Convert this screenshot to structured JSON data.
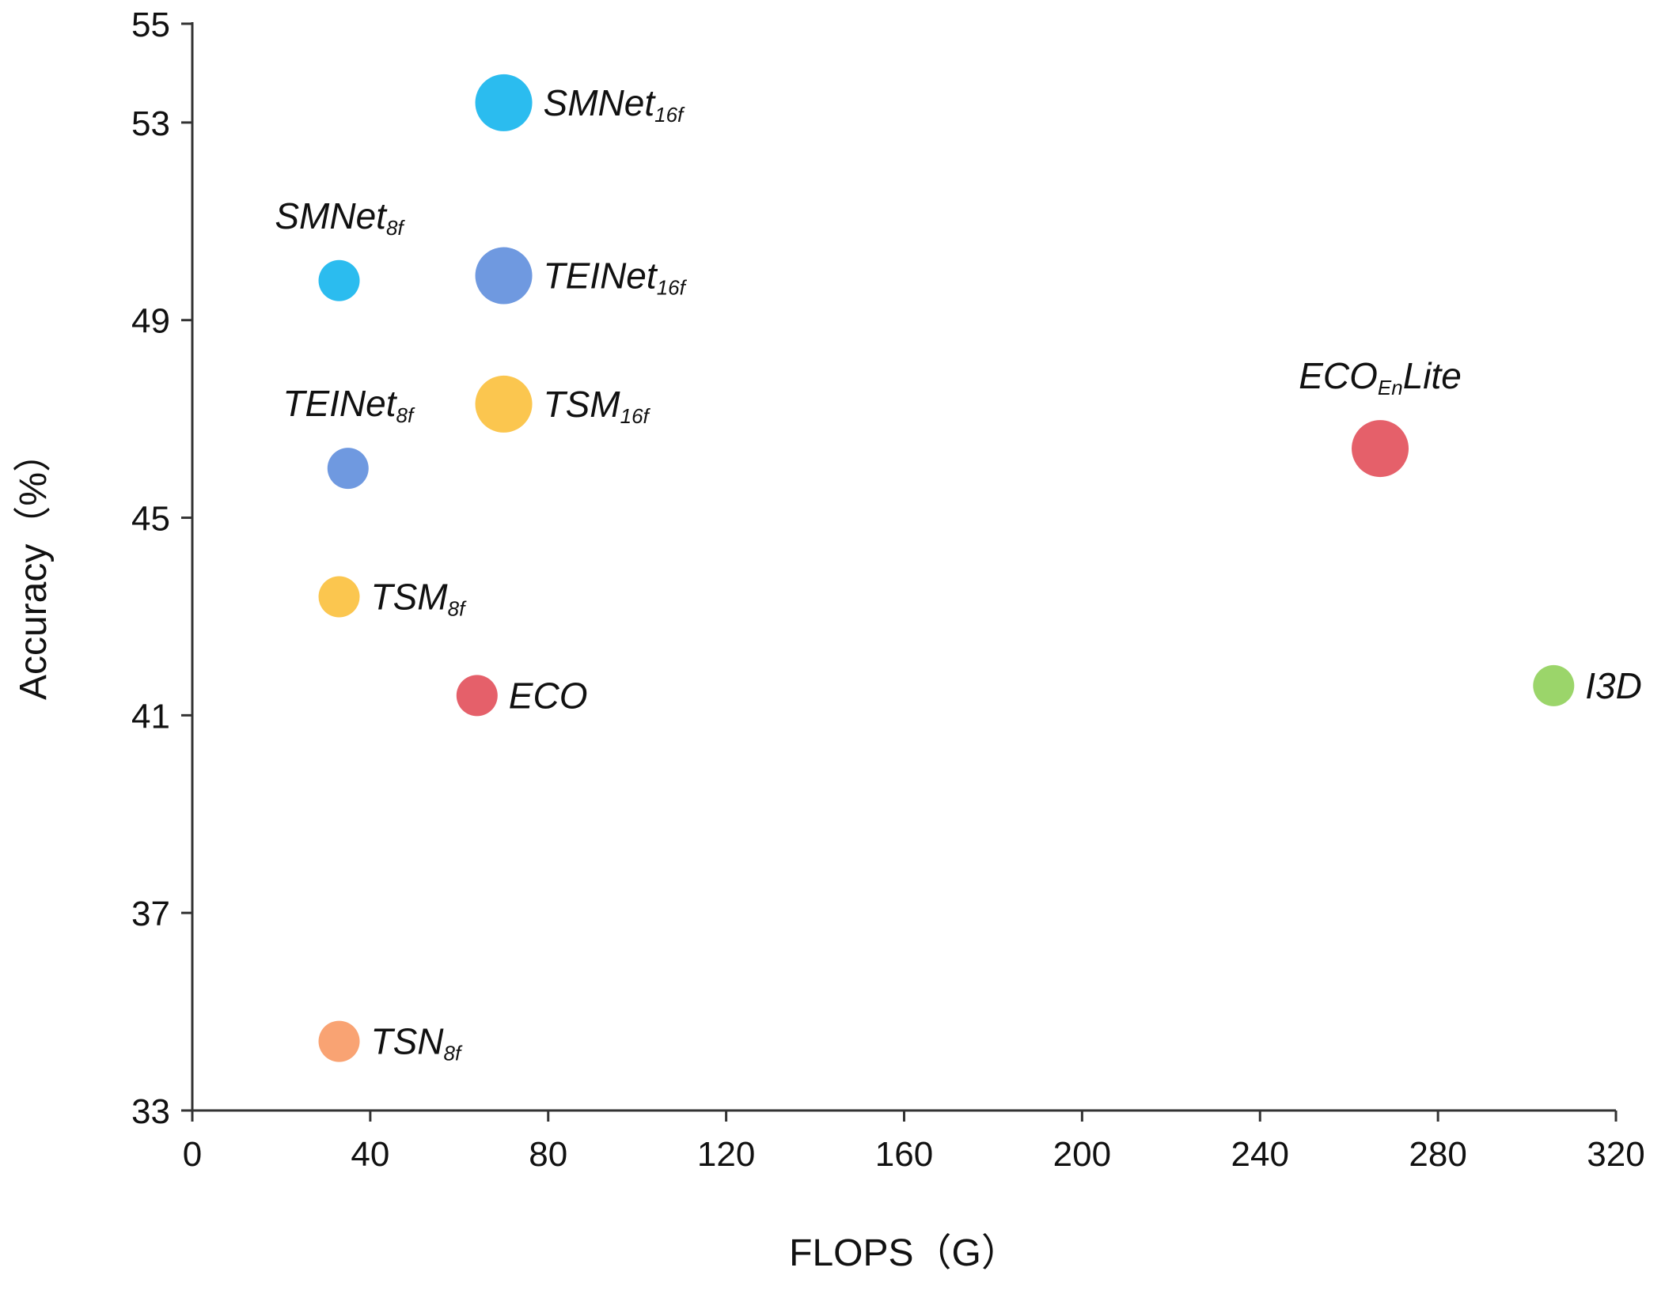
{
  "chart_data": {
    "type": "scatter",
    "title": "",
    "xlabel": "FLOPS（G）",
    "ylabel": "Accuracy（%）",
    "xlim": [
      0,
      320
    ],
    "ylim": [
      33,
      55
    ],
    "xticks": [
      0,
      40,
      80,
      120,
      160,
      200,
      240,
      280,
      320
    ],
    "yticks": [
      33,
      37,
      41,
      45,
      49,
      53,
      55
    ],
    "grid": false,
    "legend": "none",
    "points": [
      {
        "label": "SMNet",
        "sub": "16f",
        "x": 70,
        "y": 53.4,
        "size": "large",
        "color": "#2bbcef",
        "label_pos": "right"
      },
      {
        "label": "SMNet",
        "sub": "8f",
        "x": 33,
        "y": 49.8,
        "size": "small",
        "color": "#2bbcef",
        "label_pos": "above"
      },
      {
        "label": "TEINet",
        "sub": "16f",
        "x": 70,
        "y": 49.9,
        "size": "large",
        "color": "#6f99e0",
        "label_pos": "right"
      },
      {
        "label": "TSM",
        "sub": "16f",
        "x": 70,
        "y": 47.3,
        "size": "large",
        "color": "#fbc64f",
        "label_pos": "right"
      },
      {
        "label": "TEINet",
        "sub": "8f",
        "x": 35,
        "y": 46.0,
        "size": "small",
        "color": "#6f99e0",
        "label_pos": "above"
      },
      {
        "label": "TSM",
        "sub": "8f",
        "x": 33,
        "y": 43.4,
        "size": "small",
        "color": "#fbc64f",
        "label_pos": "right"
      },
      {
        "label": "ECO",
        "sub": "",
        "x": 64,
        "y": 41.4,
        "size": "small",
        "color": "#e5606a",
        "label_pos": "right"
      },
      {
        "label": "ECO",
        "sub": "En",
        "suffix": "Lite",
        "x": 267,
        "y": 46.4,
        "size": "large",
        "color": "#e5606a",
        "label_pos": "above"
      },
      {
        "label": "I3D",
        "sub": "",
        "x": 306,
        "y": 41.6,
        "size": "small",
        "color": "#9bd56a",
        "label_pos": "right"
      },
      {
        "label": "TSN",
        "sub": "8f",
        "x": 33,
        "y": 34.4,
        "size": "small",
        "color": "#f9a373",
        "label_pos": "right"
      }
    ]
  }
}
